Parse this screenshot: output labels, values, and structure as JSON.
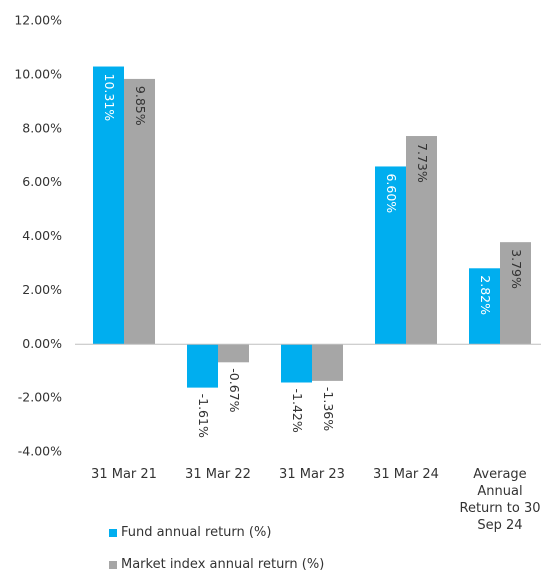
{
  "chart_data": {
    "type": "bar",
    "categories": [
      "31 Mar 21",
      "31 Mar 22",
      "31 Mar 23",
      "31 Mar 24",
      "Average Annual Return to 30 Sep 24"
    ],
    "series": [
      {
        "name": "Fund annual return (%)",
        "color": "#00aeef",
        "values": [
          10.31,
          -1.61,
          -1.42,
          6.6,
          2.82
        ],
        "value_labels": [
          "10.31%",
          "-1.61%",
          "-1.42%",
          "6.60%",
          "2.82%"
        ]
      },
      {
        "name": "Market index annual return (%)",
        "color": "#a6a6a6",
        "values": [
          9.85,
          -0.67,
          -1.36,
          7.73,
          3.79
        ],
        "value_labels": [
          "9.85%",
          "-0.67%",
          "-1.36%",
          "7.73%",
          "3.79%"
        ]
      }
    ],
    "ylim": [
      -4,
      12
    ],
    "yticks": [
      {
        "value": -4,
        "label": "-4.00%"
      },
      {
        "value": -2,
        "label": "-2.00%"
      },
      {
        "value": 0,
        "label": "0.00%"
      },
      {
        "value": 2,
        "label": "2.00%"
      },
      {
        "value": 4,
        "label": "4.00%"
      },
      {
        "value": 6,
        "label": "6.00%"
      },
      {
        "value": 8,
        "label": "8.00%"
      },
      {
        "value": 10,
        "label": "10.00%"
      },
      {
        "value": 12,
        "label": "12.00%"
      }
    ],
    "grid": false
  }
}
